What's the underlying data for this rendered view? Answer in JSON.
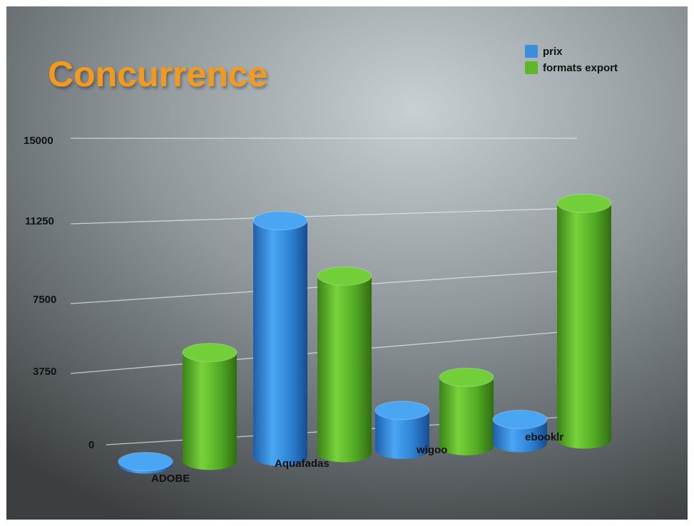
{
  "chart_data": {
    "type": "bar",
    "title": "Concurrence",
    "categories": [
      "ADOBE",
      "Aquafadas",
      "wigoo",
      "ebooklr"
    ],
    "series": [
      {
        "name": "prix",
        "color": "#3a8fdd",
        "values": [
          100,
          12000,
          2000,
          1200
        ]
      },
      {
        "name": "formats export",
        "color": "#5fb82a",
        "values": [
          5500,
          9000,
          3500,
          12000
        ]
      }
    ],
    "y_ticks": [
      "15000",
      "11250",
      "7500",
      "3750",
      "0"
    ],
    "ylim": [
      0,
      15000
    ],
    "grid": true,
    "legend_position": "top-right",
    "style": "3d-cylinders",
    "colors": {
      "title": "#f39a1b",
      "background": "#8a9094",
      "tick_text": "#111111"
    }
  }
}
